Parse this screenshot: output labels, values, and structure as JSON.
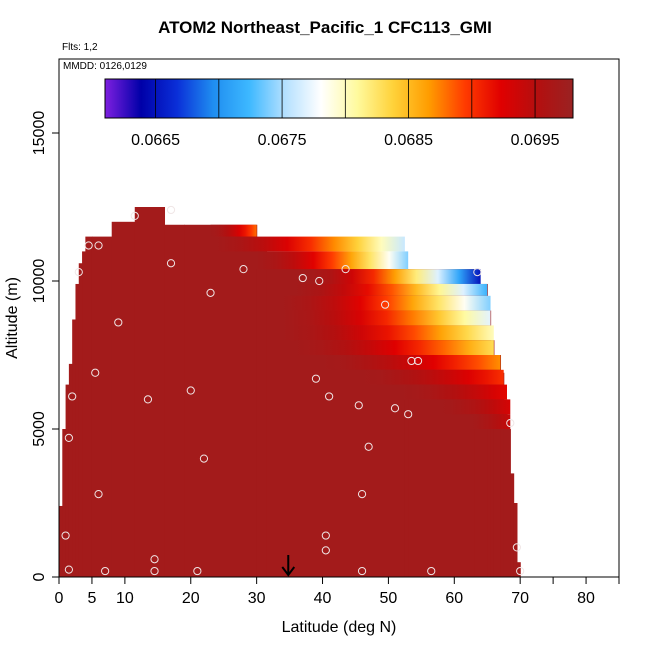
{
  "title": "ATOM2 Northeast_Pacific_1 CFC113_GMI",
  "flights_note": "Flts: 1,2",
  "mmdd_note": "MMDD: 0126,0129",
  "chart_data": {
    "type": "heatmap",
    "title": "ATOM2 Northeast_Pacific_1 CFC113_GMI",
    "xlabel": "Latitude (deg N)",
    "ylabel": "Altitude (m)",
    "xlim": [
      0,
      85
    ],
    "ylim": [
      0,
      17500
    ],
    "x_tick_labels": [
      "0",
      "5",
      "10",
      "20",
      "30",
      "40",
      "50",
      "60",
      "70",
      "80"
    ],
    "x_tick_values": [
      0,
      5,
      10,
      20,
      30,
      40,
      50,
      60,
      70,
      80
    ],
    "x_minor_ticks": [
      75,
      85
    ],
    "y_tick_labels": [
      "0",
      "5000",
      "10000",
      "15000"
    ],
    "y_tick_values": [
      0,
      5000,
      10000,
      15000
    ],
    "colorbar": {
      "min": 0.0661,
      "max": 0.0698,
      "tick_labels": [
        "0.0665",
        "0.0675",
        "0.0685",
        "0.0695"
      ],
      "tick_values": [
        0.0665,
        0.0675,
        0.0685,
        0.0695
      ],
      "colors": [
        "#7e1fe0",
        "#0000a8",
        "#0a2fd8",
        "#1f8df0",
        "#3db8ff",
        "#b4e0ff",
        "#ffffff",
        "#fffa9e",
        "#ffd23a",
        "#ff9c00",
        "#ff3b00",
        "#e00000",
        "#b40f0f",
        "#9a2222"
      ],
      "background_value": 0.0697
    },
    "field_envelope": [
      {
        "lat": 0.5,
        "alt_top": 2400
      },
      {
        "lat": 1.0,
        "alt_top": 5000
      },
      {
        "lat": 1.5,
        "alt_top": 6500
      },
      {
        "lat": 2.0,
        "alt_top": 7200
      },
      {
        "lat": 2.5,
        "alt_top": 8700
      },
      {
        "lat": 3.0,
        "alt_top": 9900
      },
      {
        "lat": 3.5,
        "alt_top": 10600
      },
      {
        "lat": 4.0,
        "alt_top": 11000
      },
      {
        "lat": 5.0,
        "alt_top": 11500
      },
      {
        "lat": 8.0,
        "alt_top": 11500
      },
      {
        "lat": 11.5,
        "alt_top": 12000
      },
      {
        "lat": 16.0,
        "alt_top": 12500
      },
      {
        "lat": 19.0,
        "alt_top": 11900
      },
      {
        "lat": 30.0,
        "alt_top": 11900
      },
      {
        "lat": 31.5,
        "alt_top": 11400
      },
      {
        "lat": 52.5,
        "alt_top": 10900
      },
      {
        "lat": 53.0,
        "alt_top": 10400
      },
      {
        "lat": 63.0,
        "alt_top": 10400
      },
      {
        "lat": 65.0,
        "alt_top": 9900
      },
      {
        "lat": 65.5,
        "alt_top": 9000
      },
      {
        "lat": 66.0,
        "alt_top": 8000
      },
      {
        "lat": 67.0,
        "alt_top": 7500
      },
      {
        "lat": 67.5,
        "alt_top": 6900
      },
      {
        "lat": 68.0,
        "alt_top": 6000
      },
      {
        "lat": 68.5,
        "alt_top": 5000
      },
      {
        "lat": 69.0,
        "alt_top": 3500
      },
      {
        "lat": 69.5,
        "alt_top": 2500
      },
      {
        "lat": 70.0,
        "alt_top": 500
      }
    ],
    "upper_gradient_bands": [
      {
        "alt_min": 11500,
        "alt_max": 11900,
        "lat_start": 23.0,
        "lat_end": 30.0,
        "end_value": 0.0688
      },
      {
        "alt_min": 11000,
        "alt_max": 11500,
        "lat_start": 24.0,
        "lat_end": 52.5,
        "end_value": 0.0676
      },
      {
        "alt_min": 10400,
        "alt_max": 11000,
        "lat_start": 30.0,
        "lat_end": 53.0,
        "end_value": 0.0674
      },
      {
        "alt_min": 9900,
        "alt_max": 10400,
        "lat_start": 38.0,
        "lat_end": 64.0,
        "end_value": 0.0665
      },
      {
        "alt_min": 9500,
        "alt_max": 9900,
        "lat_start": 36.0,
        "lat_end": 65.0,
        "end_value": 0.0672
      },
      {
        "alt_min": 9000,
        "alt_max": 9500,
        "lat_start": 34.0,
        "lat_end": 65.5,
        "end_value": 0.0674
      },
      {
        "alt_min": 8500,
        "alt_max": 9000,
        "lat_start": 34.0,
        "lat_end": 65.5,
        "end_value": 0.0677
      },
      {
        "alt_min": 8000,
        "alt_max": 8500,
        "lat_start": 34.0,
        "lat_end": 66.0,
        "end_value": 0.068
      },
      {
        "alt_min": 7500,
        "alt_max": 8000,
        "lat_start": 36.0,
        "lat_end": 66.0,
        "end_value": 0.0683
      },
      {
        "alt_min": 7000,
        "alt_max": 7500,
        "lat_start": 40.0,
        "lat_end": 67.0,
        "end_value": 0.0687
      },
      {
        "alt_min": 6500,
        "alt_max": 7000,
        "lat_start": 46.0,
        "lat_end": 67.5,
        "end_value": 0.069
      },
      {
        "alt_min": 6000,
        "alt_max": 6500,
        "lat_start": 52.0,
        "lat_end": 68.0,
        "end_value": 0.0692
      },
      {
        "alt_min": 5500,
        "alt_max": 6000,
        "lat_start": 58.0,
        "lat_end": 68.5,
        "end_value": 0.0693
      },
      {
        "alt_min": 5000,
        "alt_max": 5500,
        "lat_start": 62.0,
        "lat_end": 68.5,
        "end_value": 0.0694
      }
    ],
    "sample_points": [
      {
        "lat": 1.5,
        "alt": 250
      },
      {
        "lat": 1.0,
        "alt": 1400
      },
      {
        "lat": 1.5,
        "alt": 4700
      },
      {
        "lat": 2.0,
        "alt": 6100
      },
      {
        "lat": 3.0,
        "alt": 10300
      },
      {
        "lat": 4.5,
        "alt": 11200
      },
      {
        "lat": 6.0,
        "alt": 11200
      },
      {
        "lat": 5.5,
        "alt": 6900
      },
      {
        "lat": 6.0,
        "alt": 2800
      },
      {
        "lat": 7.0,
        "alt": 200
      },
      {
        "lat": 9.0,
        "alt": 8600
      },
      {
        "lat": 11.5,
        "alt": 12200
      },
      {
        "lat": 13.5,
        "alt": 6000
      },
      {
        "lat": 14.5,
        "alt": 600
      },
      {
        "lat": 14.5,
        "alt": 200
      },
      {
        "lat": 17.0,
        "alt": 12400
      },
      {
        "lat": 17.0,
        "alt": 10600
      },
      {
        "lat": 20.0,
        "alt": 6300
      },
      {
        "lat": 21.0,
        "alt": 200
      },
      {
        "lat": 22.0,
        "alt": 4000
      },
      {
        "lat": 23.0,
        "alt": 9600
      },
      {
        "lat": 28.0,
        "alt": 10400
      },
      {
        "lat": 37.0,
        "alt": 10100
      },
      {
        "lat": 39.0,
        "alt": 6700
      },
      {
        "lat": 39.5,
        "alt": 10000
      },
      {
        "lat": 40.5,
        "alt": 1400
      },
      {
        "lat": 40.5,
        "alt": 900
      },
      {
        "lat": 41.0,
        "alt": 6100
      },
      {
        "lat": 43.5,
        "alt": 10400
      },
      {
        "lat": 45.5,
        "alt": 5800
      },
      {
        "lat": 46.0,
        "alt": 2800
      },
      {
        "lat": 46.0,
        "alt": 200
      },
      {
        "lat": 47.0,
        "alt": 4400
      },
      {
        "lat": 49.5,
        "alt": 9200
      },
      {
        "lat": 51.0,
        "alt": 5700
      },
      {
        "lat": 53.0,
        "alt": 5500
      },
      {
        "lat": 53.5,
        "alt": 7300
      },
      {
        "lat": 54.5,
        "alt": 7300
      },
      {
        "lat": 56.5,
        "alt": 200
      },
      {
        "lat": 63.5,
        "alt": 10300
      },
      {
        "lat": 68.5,
        "alt": 5200
      },
      {
        "lat": 69.5,
        "alt": 1000
      },
      {
        "lat": 70.0,
        "alt": 200
      }
    ],
    "marker_arrow": {
      "lat": 34.8
    }
  }
}
